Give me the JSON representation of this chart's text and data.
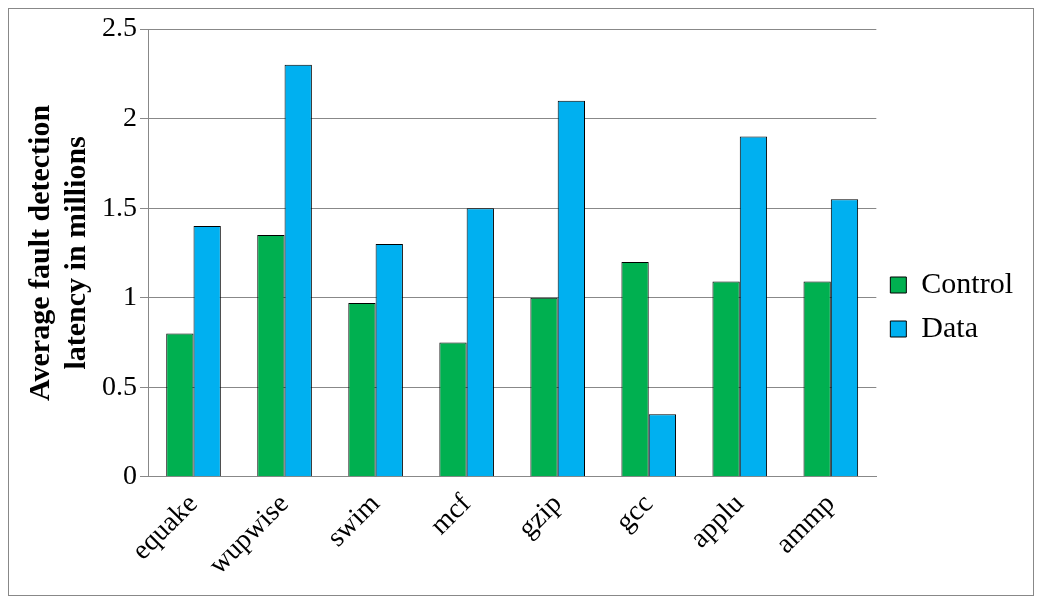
{
  "chart_data": {
    "type": "bar",
    "ylabel": "Average fault detection latency in millions",
    "categories": [
      "equake",
      "wupwise",
      "swim",
      "mcf",
      "gzip",
      "gcc",
      "applu",
      "ammp"
    ],
    "series": [
      {
        "name": "Control",
        "color": "#00b050",
        "values": [
          0.8,
          1.35,
          0.97,
          0.75,
          1.0,
          1.2,
          1.09,
          1.09
        ]
      },
      {
        "name": "Data",
        "color": "#00b0f0",
        "values": [
          1.4,
          2.3,
          1.3,
          1.5,
          2.1,
          0.35,
          1.9,
          1.55
        ]
      }
    ],
    "ylim": [
      0,
      2.5
    ],
    "yticks": [
      0,
      0.5,
      1,
      1.5,
      2,
      2.5
    ],
    "grid": "y",
    "legend": "right"
  }
}
